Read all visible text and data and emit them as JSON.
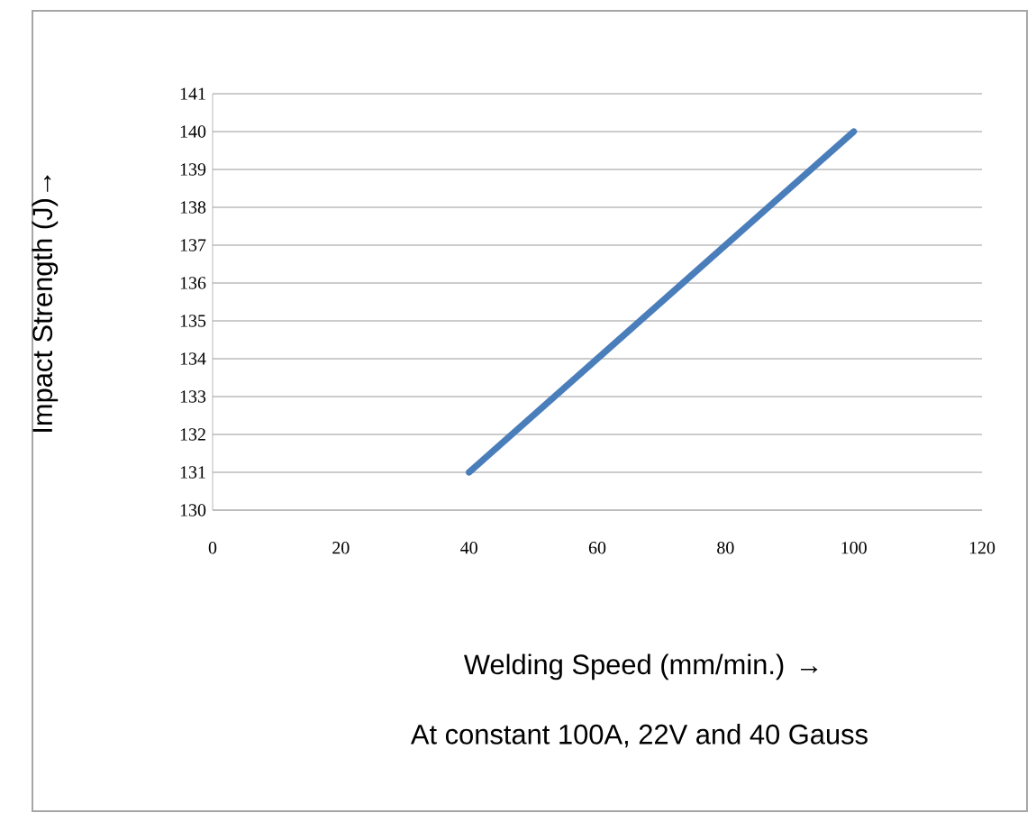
{
  "chart_data": {
    "type": "line",
    "xlabel": "Welding Speed (mm/min.) →",
    "ylabel": "Impact Strength (J)→",
    "annotations": [
      "At constant 100A, 22V and 40 Gauss"
    ],
    "x": [
      40,
      60,
      80,
      100
    ],
    "series": [
      {
        "color": "#4a7ebb",
        "values": [
          131,
          134,
          137,
          140
        ]
      }
    ],
    "xlim": [
      0,
      120
    ],
    "xticks": [
      0,
      20,
      40,
      60,
      80,
      100,
      120
    ],
    "ylim": [
      130,
      141
    ],
    "yticks": [
      130,
      131,
      132,
      133,
      134,
      135,
      136,
      137,
      138,
      139,
      140,
      141
    ],
    "grid": "y",
    "marker": "none",
    "line_style": "solid"
  }
}
